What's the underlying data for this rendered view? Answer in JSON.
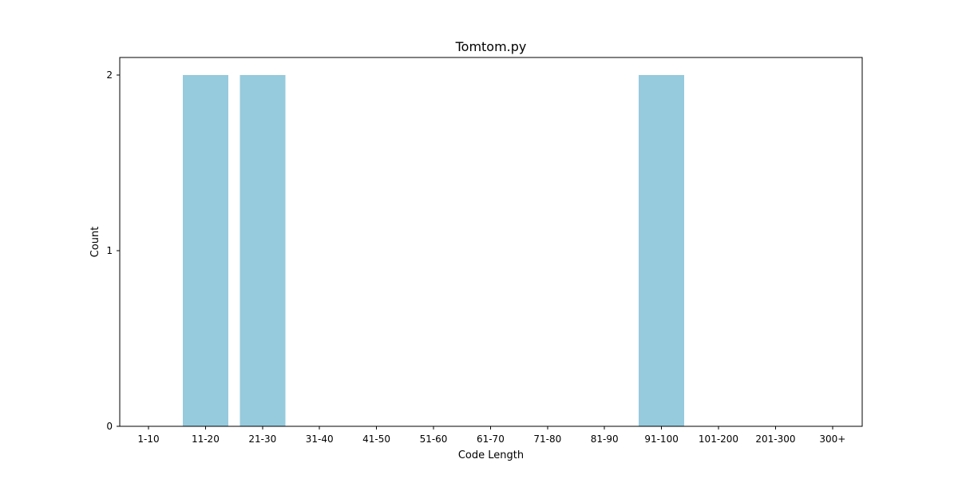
{
  "chart_data": {
    "type": "bar",
    "title": "Tomtom.py",
    "xlabel": "Code Length",
    "ylabel": "Count",
    "categories": [
      "1-10",
      "11-20",
      "21-30",
      "31-40",
      "41-50",
      "51-60",
      "61-70",
      "71-80",
      "81-90",
      "91-100",
      "101-200",
      "201-300",
      "300+"
    ],
    "values": [
      0,
      2,
      2,
      0,
      0,
      0,
      0,
      0,
      0,
      2,
      0,
      0,
      0
    ],
    "ylim": [
      0,
      2.1
    ],
    "yticks": [
      0,
      1,
      2
    ],
    "grid": false,
    "legend": "none",
    "bar_color": "#96cadd"
  }
}
